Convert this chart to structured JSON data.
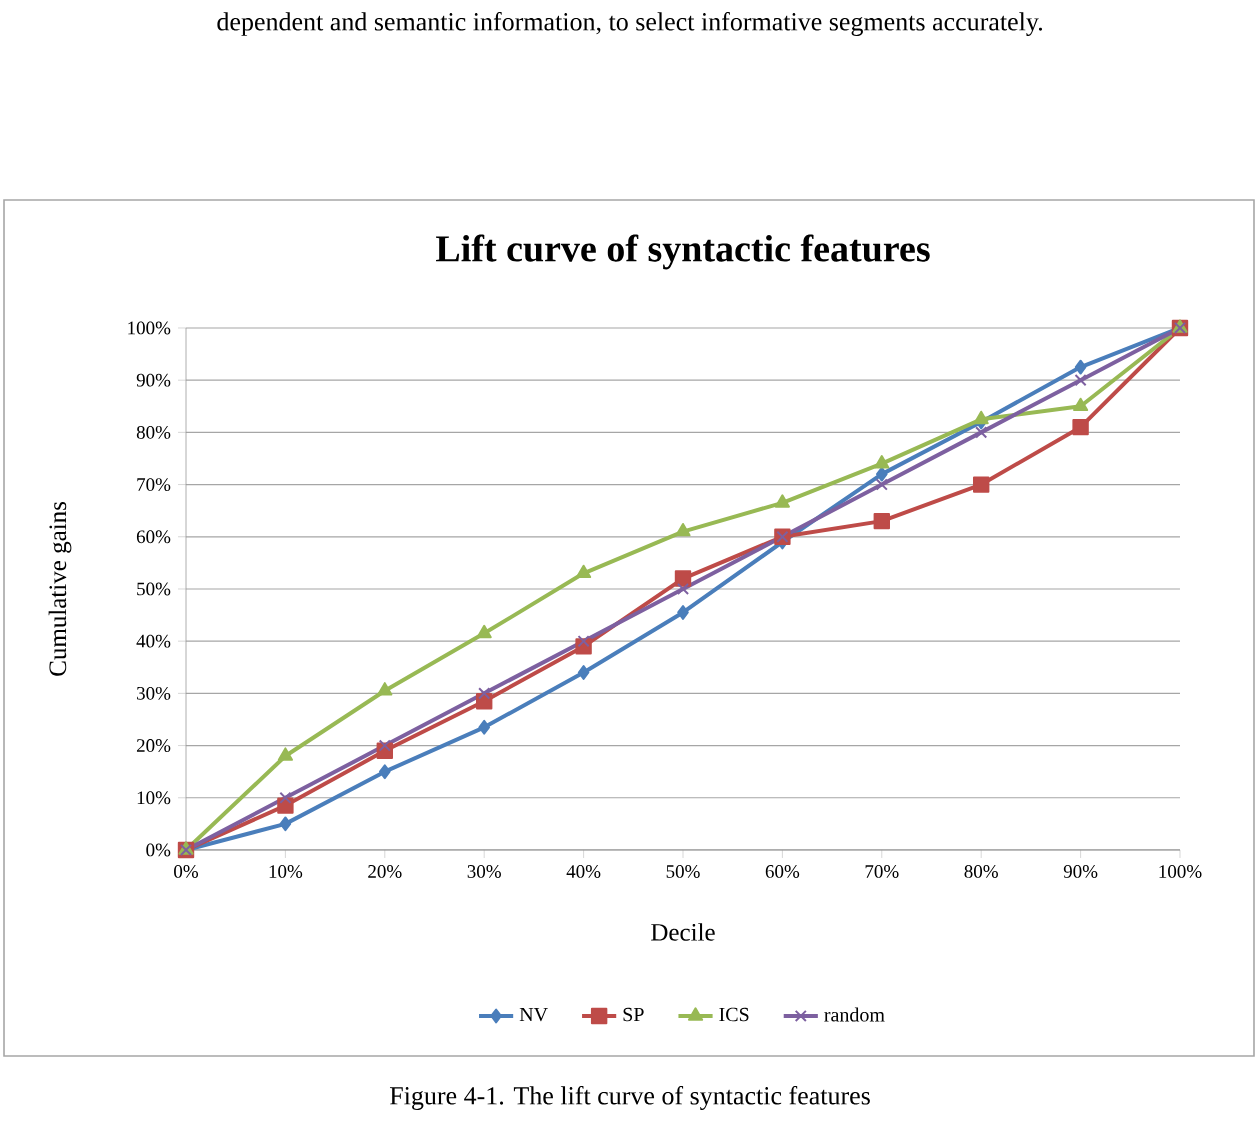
{
  "chart_data": {
    "type": "line",
    "title": "Lift curve of syntactic features",
    "xlabel": "Decile",
    "ylabel": "Cumulative gains",
    "x": [
      0,
      10,
      20,
      30,
      40,
      50,
      60,
      70,
      80,
      90,
      100
    ],
    "series": [
      {
        "name": "NV",
        "color": "#4a7ebb",
        "marker": "diamond",
        "values": [
          0,
          5,
          15,
          23.5,
          34,
          45.5,
          59,
          72,
          82,
          92.5,
          100
        ]
      },
      {
        "name": "SP",
        "color": "#be4b48",
        "marker": "square",
        "values": [
          0,
          8.5,
          19,
          28.5,
          39,
          52,
          60,
          63,
          70,
          81,
          100
        ]
      },
      {
        "name": "ICS",
        "color": "#98b954",
        "marker": "triangle",
        "values": [
          0,
          18,
          30.5,
          41.5,
          53,
          61,
          66.5,
          74,
          82.5,
          85,
          100
        ]
      },
      {
        "name": "random",
        "color": "#7d60a0",
        "marker": "cross",
        "values": [
          0,
          10,
          20,
          30,
          40,
          50,
          60,
          70,
          80,
          90,
          100
        ]
      }
    ],
    "xlim": [
      0,
      100
    ],
    "ylim": [
      0,
      100
    ],
    "xticks": [
      {
        "value": 0,
        "label": "0%"
      },
      {
        "value": 10,
        "label": "10%"
      },
      {
        "value": 20,
        "label": "20%"
      },
      {
        "value": 30,
        "label": "30%"
      },
      {
        "value": 40,
        "label": "40%"
      },
      {
        "value": 50,
        "label": "50%"
      },
      {
        "value": 60,
        "label": "60%"
      },
      {
        "value": 70,
        "label": "70%"
      },
      {
        "value": 80,
        "label": "80%"
      },
      {
        "value": 90,
        "label": "90%"
      },
      {
        "value": 100,
        "label": "100%"
      }
    ],
    "yticks": [
      {
        "value": 0,
        "label": "0%"
      },
      {
        "value": 10,
        "label": "10%"
      },
      {
        "value": 20,
        "label": "20%"
      },
      {
        "value": 30,
        "label": "30%"
      },
      {
        "value": 40,
        "label": "40%"
      },
      {
        "value": 50,
        "label": "50%"
      },
      {
        "value": 60,
        "label": "60%"
      },
      {
        "value": 70,
        "label": "70%"
      },
      {
        "value": 80,
        "label": "80%"
      },
      {
        "value": 90,
        "label": "90%"
      },
      {
        "value": 100,
        "label": "100%"
      }
    ],
    "grid": "y",
    "legend": "bottom",
    "line_style": "solid",
    "annotations": [
      "dependent and semantic information, to select informative segments accurately.",
      "Figure 4-1. The lift curve of syntactic features"
    ]
  }
}
